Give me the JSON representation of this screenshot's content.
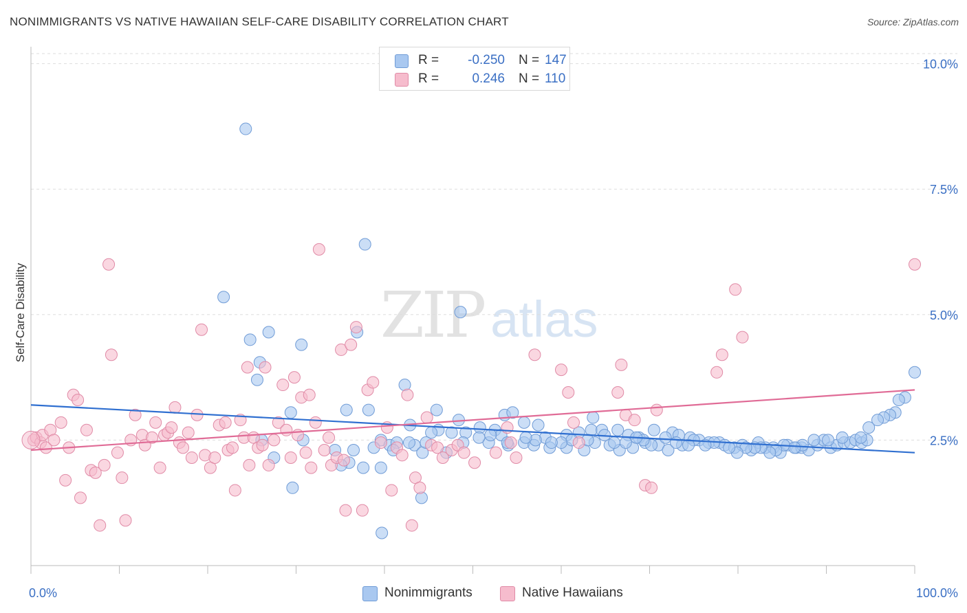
{
  "title": "NONIMMIGRANTS VS NATIVE HAWAIIAN SELF-CARE DISABILITY CORRELATION CHART",
  "source": "Source: ZipAtlas.com",
  "watermark": {
    "left": "ZIP",
    "right": "atlas"
  },
  "legend": {
    "rows": [
      {
        "r_label": "R =",
        "r_value": "-0.250",
        "n_label": "N =",
        "n_value": "147",
        "color": "#a9c8f0",
        "border": "#6f9bd6"
      },
      {
        "r_label": "R =",
        "r_value": "0.246",
        "n_label": "N =",
        "n_value": "110",
        "color": "#f6bccd",
        "border": "#e08aa6"
      }
    ]
  },
  "colors": {
    "blue_fill": "#a9c8f0",
    "blue_stroke": "#6f9bd6",
    "blue_line": "#2f6fd0",
    "pink_fill": "#f6bccd",
    "pink_stroke": "#e08aa6",
    "pink_line": "#e06b96",
    "tick_label": "#3a6fc4"
  },
  "chart_data": {
    "type": "scatter",
    "title": "NONIMMIGRANTS VS NATIVE HAWAIIAN SELF-CARE DISABILITY CORRELATION CHART",
    "xlabel": "",
    "ylabel": "Self-Care Disability",
    "xlim": [
      0,
      100
    ],
    "ylim": [
      0,
      10.2
    ],
    "x_tick_labels": [
      "0.0%",
      "100.0%"
    ],
    "y_ticks": [
      2.5,
      5.0,
      7.5,
      10.0
    ],
    "y_tick_labels": [
      "2.5%",
      "5.0%",
      "7.5%",
      "10.0%"
    ],
    "grid": "horizontal dashed",
    "legend_position": "bottom",
    "series": [
      {
        "name": "Nonimmigrants",
        "trend": {
          "x": [
            0,
            100
          ],
          "y": [
            3.2,
            2.25
          ]
        },
        "points": [
          [
            24.3,
            8.7
          ],
          [
            37.8,
            6.4
          ],
          [
            21.8,
            5.35
          ],
          [
            48.6,
            5.05
          ],
          [
            24.8,
            4.5
          ],
          [
            26.9,
            4.65
          ],
          [
            30.6,
            4.4
          ],
          [
            36.9,
            4.65
          ],
          [
            25.9,
            4.05
          ],
          [
            25.6,
            3.7
          ],
          [
            42.3,
            3.6
          ],
          [
            100.0,
            3.85
          ],
          [
            98.9,
            3.35
          ],
          [
            98.2,
            3.3
          ],
          [
            29.4,
            3.05
          ],
          [
            35.7,
            3.1
          ],
          [
            38.2,
            3.1
          ],
          [
            45.9,
            3.1
          ],
          [
            53.6,
            3.0
          ],
          [
            54.5,
            3.05
          ],
          [
            48.4,
            2.9
          ],
          [
            63.6,
            2.95
          ],
          [
            97.8,
            3.05
          ],
          [
            97.2,
            3.0
          ],
          [
            96.5,
            2.95
          ],
          [
            95.8,
            2.9
          ],
          [
            94.8,
            2.75
          ],
          [
            42.9,
            2.8
          ],
          [
            46.1,
            2.7
          ],
          [
            50.8,
            2.75
          ],
          [
            52.5,
            2.7
          ],
          [
            55.8,
            2.85
          ],
          [
            57.4,
            2.8
          ],
          [
            45.3,
            2.65
          ],
          [
            49.2,
            2.65
          ],
          [
            53.2,
            2.6
          ],
          [
            58.2,
            2.55
          ],
          [
            60.6,
            2.6
          ],
          [
            62.0,
            2.65
          ],
          [
            63.4,
            2.7
          ],
          [
            64.6,
            2.7
          ],
          [
            66.4,
            2.7
          ],
          [
            67.6,
            2.6
          ],
          [
            68.8,
            2.55
          ],
          [
            70.5,
            2.7
          ],
          [
            72.6,
            2.65
          ],
          [
            73.3,
            2.6
          ],
          [
            74.6,
            2.55
          ],
          [
            75.6,
            2.5
          ],
          [
            76.7,
            2.45
          ],
          [
            26.1,
            2.5
          ],
          [
            30.8,
            2.5
          ],
          [
            34.4,
            2.3
          ],
          [
            39.6,
            2.5
          ],
          [
            40.6,
            2.4
          ],
          [
            41.4,
            2.45
          ],
          [
            43.4,
            2.4
          ],
          [
            44.3,
            2.25
          ],
          [
            47.0,
            2.25
          ],
          [
            48.9,
            2.45
          ],
          [
            51.8,
            2.45
          ],
          [
            54.0,
            2.4
          ],
          [
            55.8,
            2.45
          ],
          [
            56.9,
            2.4
          ],
          [
            58.7,
            2.35
          ],
          [
            60.6,
            2.35
          ],
          [
            62.6,
            2.3
          ],
          [
            63.8,
            2.45
          ],
          [
            65.5,
            2.4
          ],
          [
            66.6,
            2.3
          ],
          [
            68.1,
            2.35
          ],
          [
            69.5,
            2.45
          ],
          [
            71.0,
            2.4
          ],
          [
            72.1,
            2.3
          ],
          [
            73.7,
            2.4
          ],
          [
            75.0,
            2.5
          ],
          [
            77.9,
            2.45
          ],
          [
            78.5,
            2.4
          ],
          [
            79.6,
            2.35
          ],
          [
            80.5,
            2.4
          ],
          [
            81.5,
            2.3
          ],
          [
            82.3,
            2.45
          ],
          [
            83.1,
            2.35
          ],
          [
            84.0,
            2.35
          ],
          [
            84.8,
            2.25
          ],
          [
            85.6,
            2.4
          ],
          [
            86.6,
            2.35
          ],
          [
            87.2,
            2.35
          ],
          [
            88.0,
            2.3
          ],
          [
            89.0,
            2.4
          ],
          [
            89.7,
            2.5
          ],
          [
            90.5,
            2.35
          ],
          [
            91.2,
            2.4
          ],
          [
            92.0,
            2.45
          ],
          [
            92.7,
            2.45
          ],
          [
            93.3,
            2.5
          ],
          [
            94.0,
            2.45
          ],
          [
            94.6,
            2.5
          ],
          [
            93.9,
            2.55
          ],
          [
            91.8,
            2.55
          ],
          [
            90.2,
            2.5
          ],
          [
            88.6,
            2.5
          ],
          [
            87.3,
            2.4
          ],
          [
            86.4,
            2.35
          ],
          [
            85.2,
            2.4
          ],
          [
            84.3,
            2.3
          ],
          [
            83.6,
            2.25
          ],
          [
            82.6,
            2.35
          ],
          [
            81.9,
            2.35
          ],
          [
            80.9,
            2.35
          ],
          [
            79.9,
            2.25
          ],
          [
            79.0,
            2.35
          ],
          [
            77.3,
            2.45
          ],
          [
            76.3,
            2.4
          ],
          [
            74.4,
            2.4
          ],
          [
            73.0,
            2.45
          ],
          [
            71.8,
            2.55
          ],
          [
            70.2,
            2.4
          ],
          [
            69.3,
            2.5
          ],
          [
            68.5,
            2.55
          ],
          [
            67.3,
            2.45
          ],
          [
            66.0,
            2.45
          ],
          [
            64.9,
            2.6
          ],
          [
            63.0,
            2.5
          ],
          [
            61.2,
            2.5
          ],
          [
            60.0,
            2.45
          ],
          [
            58.9,
            2.45
          ],
          [
            57.1,
            2.5
          ],
          [
            56.0,
            2.55
          ],
          [
            53.9,
            2.45
          ],
          [
            52.0,
            2.6
          ],
          [
            50.7,
            2.55
          ],
          [
            47.6,
            2.65
          ],
          [
            44.7,
            2.45
          ],
          [
            42.8,
            2.45
          ],
          [
            41.0,
            2.3
          ],
          [
            38.8,
            2.35
          ],
          [
            36.5,
            2.3
          ],
          [
            36.0,
            2.05
          ],
          [
            35.1,
            2.0
          ],
          [
            27.5,
            2.15
          ],
          [
            37.6,
            1.95
          ],
          [
            39.6,
            1.95
          ],
          [
            29.6,
            1.55
          ],
          [
            44.2,
            1.35
          ],
          [
            39.7,
            0.65
          ]
        ]
      },
      {
        "name": "Native Hawaiians",
        "trend": {
          "x": [
            0,
            100
          ],
          "y": [
            2.3,
            3.5
          ]
        },
        "points": [
          [
            0.3,
            2.5
          ],
          [
            0.6,
            2.55
          ],
          [
            1.1,
            2.45
          ],
          [
            1.3,
            2.6
          ],
          [
            1.7,
            2.35
          ],
          [
            2.2,
            2.7
          ],
          [
            2.6,
            2.5
          ],
          [
            3.4,
            2.85
          ],
          [
            3.9,
            1.7
          ],
          [
            4.3,
            2.35
          ],
          [
            4.8,
            3.4
          ],
          [
            5.3,
            3.3
          ],
          [
            5.6,
            1.35
          ],
          [
            6.3,
            2.7
          ],
          [
            6.8,
            1.9
          ],
          [
            7.3,
            1.85
          ],
          [
            7.8,
            0.8
          ],
          [
            8.3,
            2.0
          ],
          [
            8.8,
            6.0
          ],
          [
            9.1,
            4.2
          ],
          [
            9.8,
            2.25
          ],
          [
            10.3,
            1.75
          ],
          [
            10.7,
            0.9
          ],
          [
            11.3,
            2.5
          ],
          [
            11.8,
            3.0
          ],
          [
            12.6,
            2.6
          ],
          [
            12.9,
            2.4
          ],
          [
            13.7,
            2.55
          ],
          [
            14.1,
            2.85
          ],
          [
            14.6,
            1.95
          ],
          [
            15.1,
            2.6
          ],
          [
            15.5,
            2.65
          ],
          [
            15.9,
            2.75
          ],
          [
            16.3,
            3.15
          ],
          [
            16.8,
            2.45
          ],
          [
            17.2,
            2.35
          ],
          [
            17.8,
            2.65
          ],
          [
            18.2,
            2.15
          ],
          [
            18.8,
            3.0
          ],
          [
            19.3,
            4.7
          ],
          [
            19.7,
            2.2
          ],
          [
            20.3,
            1.95
          ],
          [
            20.8,
            2.15
          ],
          [
            21.3,
            2.8
          ],
          [
            22.0,
            2.85
          ],
          [
            22.3,
            2.3
          ],
          [
            22.8,
            2.35
          ],
          [
            23.1,
            1.5
          ],
          [
            23.7,
            2.9
          ],
          [
            24.1,
            2.55
          ],
          [
            24.5,
            3.95
          ],
          [
            24.7,
            2.0
          ],
          [
            25.2,
            2.55
          ],
          [
            25.7,
            2.35
          ],
          [
            26.2,
            2.4
          ],
          [
            26.5,
            3.95
          ],
          [
            26.9,
            2.0
          ],
          [
            27.5,
            2.5
          ],
          [
            28.0,
            2.85
          ],
          [
            28.5,
            3.6
          ],
          [
            28.9,
            2.7
          ],
          [
            29.4,
            2.15
          ],
          [
            29.8,
            3.75
          ],
          [
            30.2,
            2.6
          ],
          [
            30.6,
            3.35
          ],
          [
            31.1,
            2.25
          ],
          [
            31.5,
            3.4
          ],
          [
            31.7,
            1.95
          ],
          [
            32.2,
            2.85
          ],
          [
            32.6,
            6.3
          ],
          [
            33.2,
            2.3
          ],
          [
            33.7,
            2.55
          ],
          [
            34.0,
            2.0
          ],
          [
            34.6,
            2.15
          ],
          [
            35.1,
            4.3
          ],
          [
            35.4,
            2.1
          ],
          [
            35.6,
            1.1
          ],
          [
            36.2,
            4.4
          ],
          [
            36.8,
            4.75
          ],
          [
            37.5,
            1.1
          ],
          [
            38.1,
            3.5
          ],
          [
            38.7,
            3.65
          ],
          [
            39.6,
            2.45
          ],
          [
            40.3,
            2.75
          ],
          [
            40.8,
            1.5
          ],
          [
            41.4,
            2.35
          ],
          [
            42.0,
            2.2
          ],
          [
            42.6,
            3.4
          ],
          [
            43.1,
            0.8
          ],
          [
            43.5,
            1.75
          ],
          [
            44.0,
            1.55
          ],
          [
            44.8,
            2.95
          ],
          [
            45.3,
            2.4
          ],
          [
            46.0,
            2.35
          ],
          [
            46.6,
            2.15
          ],
          [
            47.6,
            2.3
          ],
          [
            48.3,
            2.4
          ],
          [
            49.0,
            2.25
          ],
          [
            50.2,
            2.05
          ],
          [
            52.6,
            2.25
          ],
          [
            53.9,
            2.75
          ],
          [
            54.3,
            2.45
          ],
          [
            54.9,
            2.15
          ],
          [
            57.0,
            4.2
          ],
          [
            60.0,
            3.9
          ],
          [
            60.8,
            3.45
          ],
          [
            61.4,
            2.85
          ],
          [
            62.0,
            2.45
          ],
          [
            66.4,
            3.45
          ],
          [
            66.8,
            4.0
          ],
          [
            67.3,
            3.0
          ],
          [
            68.3,
            2.9
          ],
          [
            69.5,
            1.6
          ],
          [
            70.2,
            1.55
          ],
          [
            70.8,
            3.1
          ],
          [
            77.6,
            3.85
          ],
          [
            78.2,
            4.2
          ],
          [
            79.7,
            5.5
          ],
          [
            80.5,
            4.55
          ],
          [
            100.0,
            6.0
          ]
        ]
      }
    ]
  },
  "bottom_legend": [
    {
      "label": "Nonimmigrants",
      "color": "#a9c8f0",
      "border": "#6f9bd6"
    },
    {
      "label": "Native Hawaiians",
      "color": "#f6bccd",
      "border": "#e08aa6"
    }
  ]
}
